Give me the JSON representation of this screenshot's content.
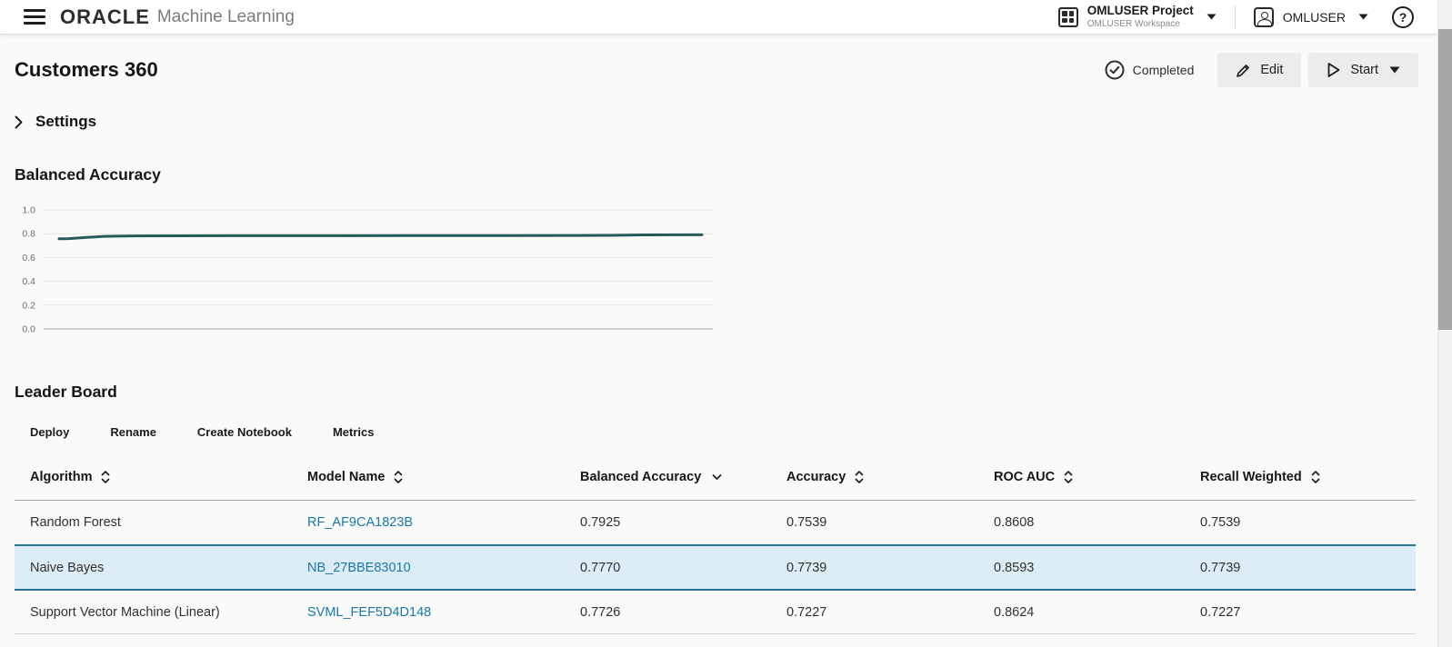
{
  "header": {
    "brand": "ORACLE",
    "product": "Machine Learning",
    "project_name": "OMLUSER Project",
    "workspace_name": "OMLUSER Workspace",
    "username": "OMLUSER",
    "help_glyph": "?"
  },
  "page": {
    "title": "Customers 360",
    "status_label": "Completed",
    "edit_label": "Edit",
    "start_label": "Start",
    "settings_label": "Settings"
  },
  "chart_data": {
    "type": "line",
    "title": "Balanced Accuracy",
    "series_name": "Balanced Accuracy",
    "x": [
      0,
      1.5,
      4,
      7,
      12,
      30,
      55,
      70,
      86,
      91,
      100
    ],
    "values": [
      0.757,
      0.759,
      0.768,
      0.778,
      0.782,
      0.783,
      0.784,
      0.784,
      0.786,
      0.79,
      0.791
    ],
    "xlabel": "",
    "ylabel": "",
    "ylim": [
      0,
      1
    ],
    "yticks": [
      1.0,
      0.8,
      0.6,
      0.4,
      0.2,
      0.0
    ],
    "ytick_labels": [
      "1.0",
      "0.8",
      "0.6",
      "0.4",
      "0.2",
      "0.0"
    ],
    "grid": true,
    "legend_position": "none",
    "line_color": "#265b5b"
  },
  "leaderboard": {
    "title": "Leader Board",
    "actions": [
      "Deploy",
      "Rename",
      "Create Notebook",
      "Metrics"
    ],
    "columns": [
      {
        "label": "Algorithm",
        "sort": "both"
      },
      {
        "label": "Model Name",
        "sort": "both"
      },
      {
        "label": "Balanced Accuracy",
        "sort": "desc"
      },
      {
        "label": "Accuracy",
        "sort": "both"
      },
      {
        "label": "ROC AUC",
        "sort": "both"
      },
      {
        "label": "Recall Weighted",
        "sort": "both"
      }
    ],
    "rows": [
      {
        "algorithm": "Random Forest",
        "model_name": "RF_AF9CA1823B",
        "balanced_accuracy": "0.7925",
        "accuracy": "0.7539",
        "roc_auc": "0.8608",
        "recall_weighted": "0.7539",
        "selected": false
      },
      {
        "algorithm": "Naive Bayes",
        "model_name": "NB_27BBE83010",
        "balanced_accuracy": "0.7770",
        "accuracy": "0.7739",
        "roc_auc": "0.8593",
        "recall_weighted": "0.7739",
        "selected": true
      },
      {
        "algorithm": "Support Vector Machine (Linear)",
        "model_name": "SVML_FEF5D4D148",
        "balanced_accuracy": "0.7726",
        "accuracy": "0.7227",
        "roc_auc": "0.8624",
        "recall_weighted": "0.7227",
        "selected": false
      }
    ]
  },
  "colors": {
    "accent_link": "#1878ad",
    "selected_row_bg": "#ddedf7",
    "selected_row_border": "#2b7396",
    "chart_line": "#265b5b",
    "topbar_bg": "#ffffff",
    "page_bg": "#fafaf9"
  }
}
